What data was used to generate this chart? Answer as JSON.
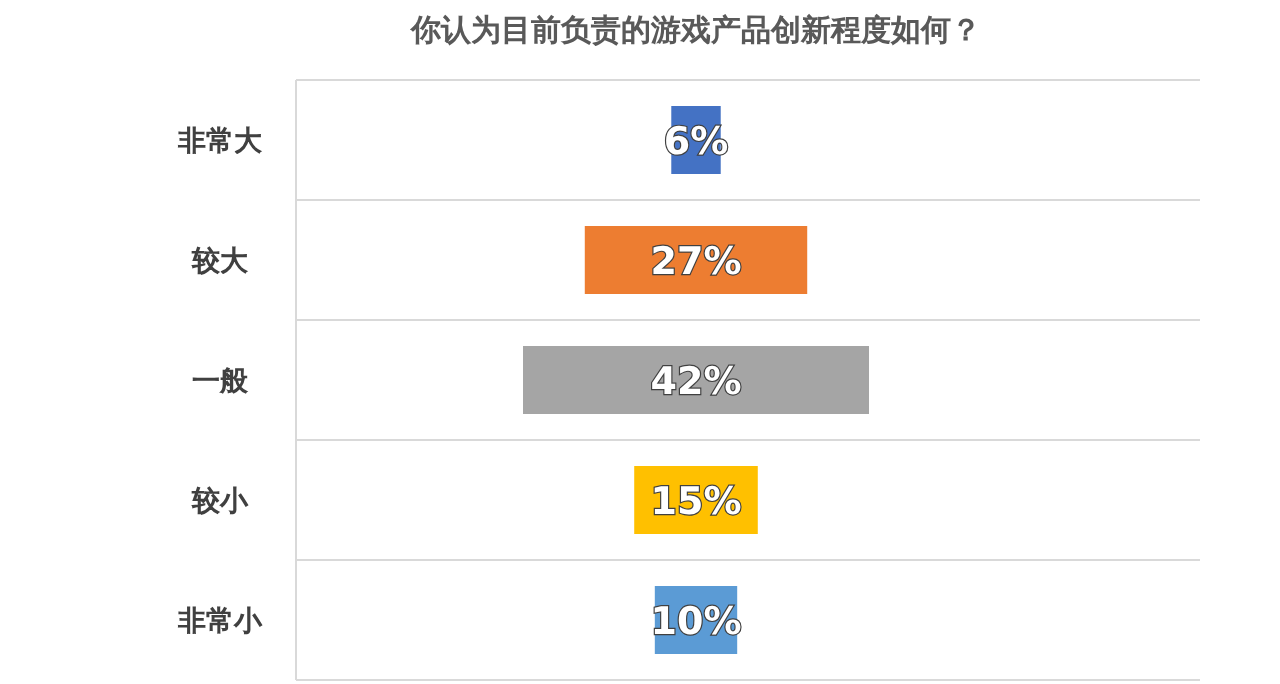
{
  "chart_data": {
    "type": "other",
    "title": "你认为目前负责的游戏产品创新程度如何？",
    "categories": [
      "非常大",
      "较大",
      "一般",
      "较小",
      "非常小"
    ],
    "values": [
      6,
      27,
      42,
      15,
      10
    ],
    "colors": [
      "#4472c4",
      "#ed7d31",
      "#a5a5a5",
      "#ffc000",
      "#5b9bd5"
    ],
    "value_labels": [
      "6%",
      "27%",
      "42%",
      "15%",
      "10%"
    ]
  }
}
